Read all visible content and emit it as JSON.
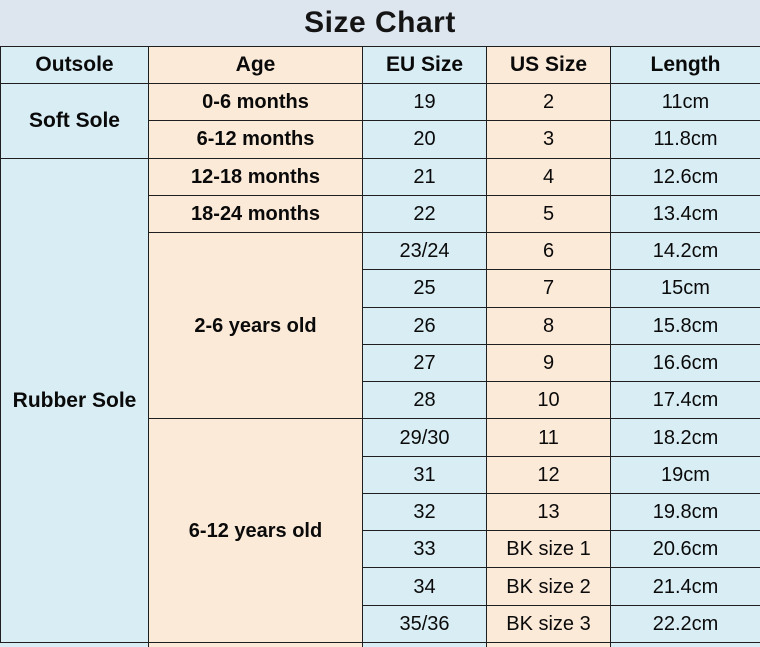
{
  "title": "Size Chart",
  "colors": {
    "title_band_bg": "#dde5ef",
    "blue_cell": "#d9edf4",
    "peach_cell": "#fcead9",
    "border": "#1f1f1f",
    "text": "#0a0a0a"
  },
  "chart_data": {
    "type": "table",
    "title": "Size Chart",
    "columns": [
      "Outsole",
      "Age",
      "EU Size",
      "US Size",
      "Length"
    ],
    "groups": [
      {
        "outsole": "Soft Sole",
        "ages": [
          {
            "age": "0-6 months",
            "rows": [
              {
                "eu": "19",
                "us": "2",
                "length": "11cm"
              }
            ]
          },
          {
            "age": "6-12 months",
            "rows": [
              {
                "eu": "20",
                "us": "3",
                "length": "11.8cm"
              }
            ]
          }
        ]
      },
      {
        "outsole": "Rubber Sole",
        "ages": [
          {
            "age": "12-18 months",
            "rows": [
              {
                "eu": "21",
                "us": "4",
                "length": "12.6cm"
              }
            ]
          },
          {
            "age": "18-24 months",
            "rows": [
              {
                "eu": "22",
                "us": "5",
                "length": "13.4cm"
              }
            ]
          },
          {
            "age": "2-6 years old",
            "rows": [
              {
                "eu": "23/24",
                "us": "6",
                "length": "14.2cm"
              },
              {
                "eu": "25",
                "us": "7",
                "length": "15cm"
              },
              {
                "eu": "26",
                "us": "8",
                "length": "15.8cm"
              },
              {
                "eu": "27",
                "us": "9",
                "length": "16.6cm"
              },
              {
                "eu": "28",
                "us": "10",
                "length": "17.4cm"
              }
            ]
          },
          {
            "age": "6-12 years old",
            "rows": [
              {
                "eu": "29/30",
                "us": "11",
                "length": "18.2cm"
              },
              {
                "eu": "31",
                "us": "12",
                "length": "19cm"
              },
              {
                "eu": "32",
                "us": "13",
                "length": "19.8cm"
              },
              {
                "eu": "33",
                "us": "BK size 1",
                "length": "20.6cm"
              },
              {
                "eu": "34",
                "us": "BK size 2",
                "length": "21.4cm"
              },
              {
                "eu": "35/36",
                "us": "BK size 3",
                "length": "22.2cm"
              }
            ]
          }
        ]
      }
    ]
  }
}
